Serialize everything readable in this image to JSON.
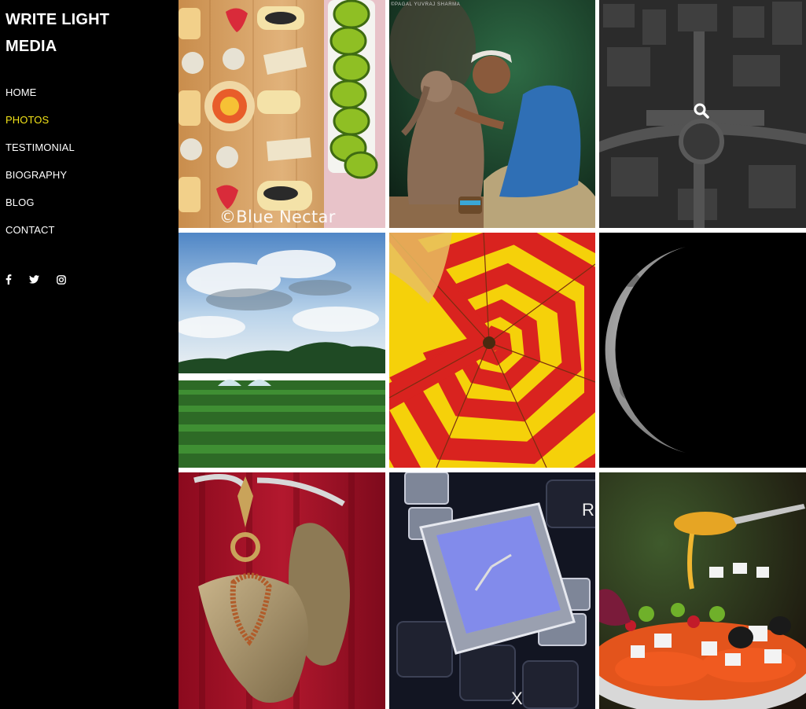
{
  "site": {
    "title_line1": "WRITE LIGHT",
    "title_line2": "MEDIA"
  },
  "nav": [
    {
      "label": "HOME",
      "active": false
    },
    {
      "label": "PHOTOS",
      "active": true
    },
    {
      "label": "TESTIMONIAL",
      "active": false
    },
    {
      "label": "BIOGRAPHY",
      "active": false
    },
    {
      "label": "BLOG",
      "active": false
    },
    {
      "label": "CONTACT",
      "active": false
    }
  ],
  "social": [
    "facebook-icon",
    "twitter-icon",
    "instagram-icon"
  ],
  "colors": {
    "background": "#000000",
    "text": "#ffffff",
    "active": "#f2e318",
    "gallery_gap": "#ffffff"
  },
  "gallery": {
    "photo1_watermark": "©Blue Nectar",
    "photo2_credit": "©PAGAL YUVRAJ SHARMA",
    "hover_icon": "search-icon"
  }
}
